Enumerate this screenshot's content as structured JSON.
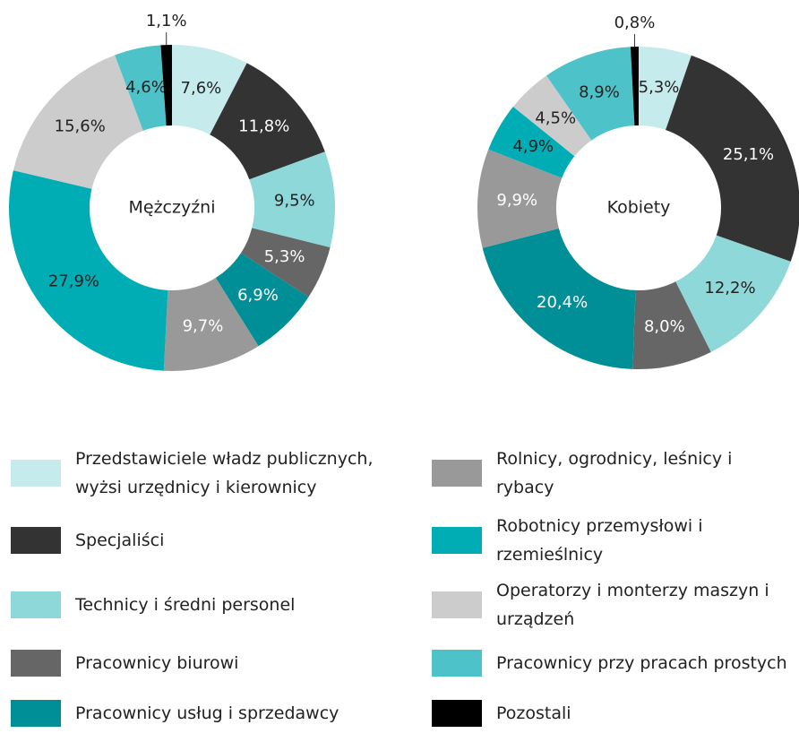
{
  "chart_data": [
    {
      "type": "pie",
      "title": "Mężczyźni",
      "values": [
        7.6,
        11.8,
        9.5,
        5.3,
        6.9,
        9.7,
        27.9,
        15.6,
        4.6,
        1.1
      ],
      "value_labels": [
        "7,6%",
        "11,8%",
        "9,5%",
        "5,3%",
        "6,9%",
        "9,7%",
        "27,9%",
        "15,6%",
        "4,6%",
        "1,1%"
      ]
    },
    {
      "type": "pie",
      "title": "Kobiety",
      "values": [
        5.3,
        25.1,
        12.2,
        8.0,
        20.4,
        9.9,
        4.9,
        4.5,
        8.9,
        0.8
      ],
      "value_labels": [
        "5,3%",
        "25,1%",
        "12,2%",
        "8,0%",
        "20,4%",
        "9,9%",
        "4,9%",
        "4,5%",
        "8,9%",
        "0,8%"
      ]
    }
  ],
  "legend": {
    "categories": [
      "Przedstawiciele władz publicznych, wyżsi urzędnicy i kierownicy",
      "Specjaliści",
      "Technicy i średni personel",
      "Pracownicy biurowi",
      "Pracownicy usług i sprzedawcy",
      "Rolnicy, ogrodnicy, leśnicy i rybacy",
      "Robotnicy przemysłowi i rzemieślnicy",
      "Operatorzy i monterzy maszyn i urządzeń",
      "Pracownicy przy pracach prostych",
      "Pozostali"
    ],
    "colors": [
      "#c5ebec",
      "#333333",
      "#8fd8da",
      "#666666",
      "#008f96",
      "#999999",
      "#00adb5",
      "#cccccc",
      "#4dc3c9",
      "#000000"
    ],
    "label_colors": [
      "#222222",
      "#ffffff",
      "#222222",
      "#ffffff",
      "#ffffff",
      "#ffffff",
      "#222222",
      "#222222",
      "#222222",
      "#222222"
    ]
  }
}
